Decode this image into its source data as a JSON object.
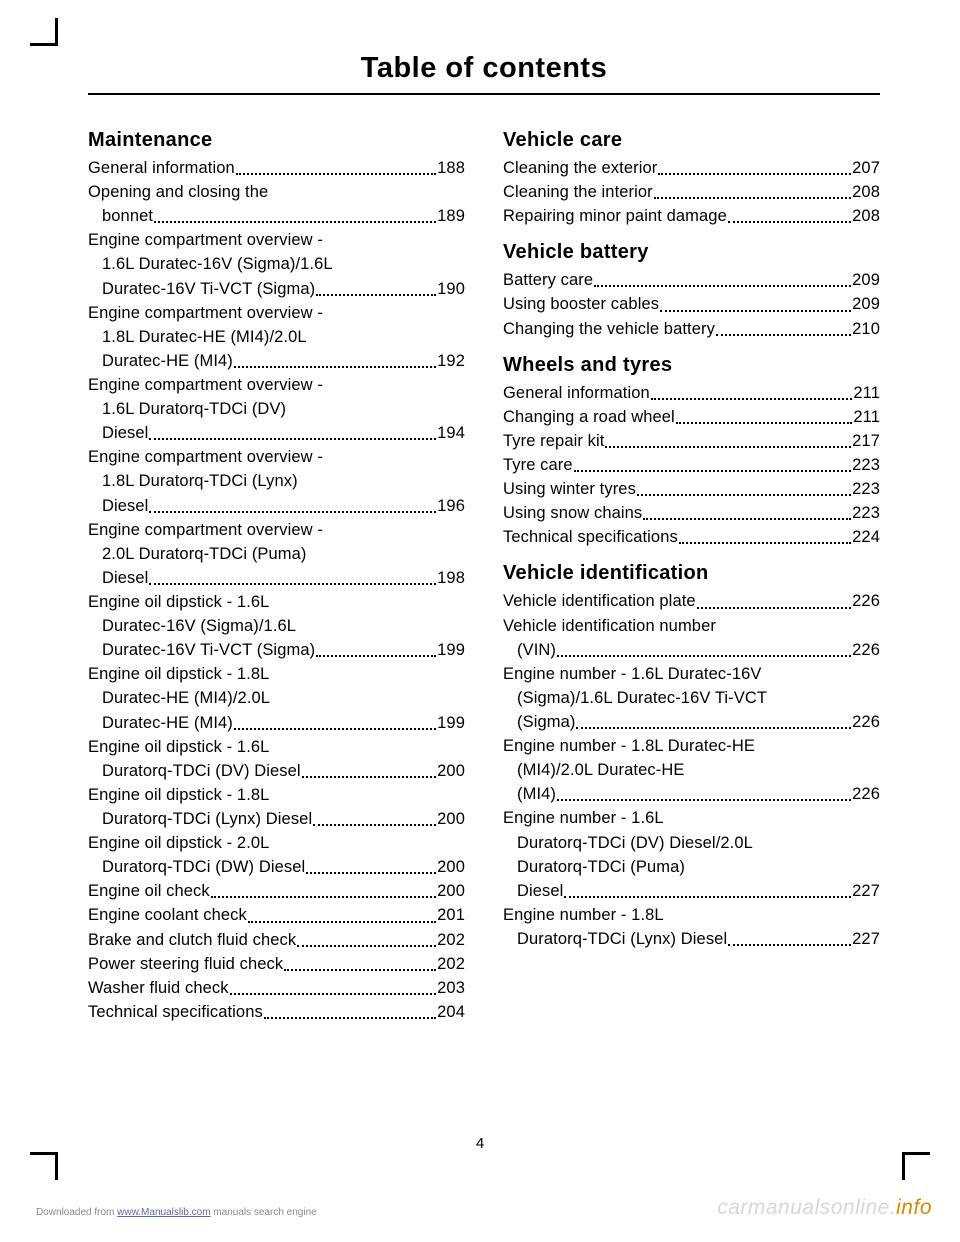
{
  "title": "Table of contents",
  "page_number": "4",
  "footer": {
    "prefix": "Downloaded from ",
    "link": "www.Manualslib.com",
    "suffix": " manuals search engine"
  },
  "watermark": {
    "left": "carmanualsonline.",
    "right": "info"
  },
  "left_column": {
    "sections": [
      {
        "heading": "Maintenance",
        "entries": [
          {
            "text": "General information",
            "page": "188"
          },
          {
            "text": "Opening and closing the",
            "cont": "bonnet",
            "page": "189"
          },
          {
            "text": "Engine compartment overview -",
            "cont": "1.6L Duratec-16V (Sigma)/1.6L",
            "cont2": "Duratec-16V Ti-VCT (Sigma)",
            "page": "190"
          },
          {
            "text": "Engine compartment overview -",
            "cont": "1.8L Duratec-HE (MI4)/2.0L",
            "cont2": "Duratec-HE (MI4)",
            "page": "192"
          },
          {
            "text": "Engine compartment overview -",
            "cont": "1.6L Duratorq-TDCi (DV)",
            "cont2": "Diesel",
            "page": "194"
          },
          {
            "text": "Engine compartment overview -",
            "cont": "1.8L Duratorq-TDCi (Lynx)",
            "cont2": "Diesel",
            "page": "196"
          },
          {
            "text": "Engine compartment overview -",
            "cont": "2.0L Duratorq-TDCi (Puma)",
            "cont2": "Diesel",
            "page": "198"
          },
          {
            "text": "Engine oil dipstick - 1.6L",
            "cont": "Duratec-16V (Sigma)/1.6L",
            "cont2": "Duratec-16V Ti-VCT (Sigma)",
            "page": "199"
          },
          {
            "text": "Engine oil dipstick - 1.8L",
            "cont": "Duratec-HE (MI4)/2.0L",
            "cont2": "Duratec-HE (MI4)",
            "page": "199"
          },
          {
            "text": "Engine oil dipstick - 1.6L",
            "cont": "Duratorq-TDCi (DV) Diesel",
            "page": "200"
          },
          {
            "text": "Engine oil dipstick - 1.8L",
            "cont": "Duratorq-TDCi (Lynx) Diesel",
            "page": "200"
          },
          {
            "text": "Engine oil dipstick - 2.0L",
            "cont": "Duratorq-TDCi (DW) Diesel",
            "page": "200"
          },
          {
            "text": "Engine oil check",
            "page": "200"
          },
          {
            "text": "Engine coolant check",
            "page": "201"
          },
          {
            "text": "Brake and clutch fluid check",
            "page": "202"
          },
          {
            "text": "Power steering fluid check",
            "page": "202"
          },
          {
            "text": "Washer fluid check",
            "page": "203"
          },
          {
            "text": "Technical specifications",
            "page": "204"
          }
        ]
      }
    ]
  },
  "right_column": {
    "sections": [
      {
        "heading": "Vehicle care",
        "entries": [
          {
            "text": "Cleaning the exterior",
            "page": "207"
          },
          {
            "text": "Cleaning the interior",
            "page": "208"
          },
          {
            "text": "Repairing minor paint damage",
            "page": "208"
          }
        ]
      },
      {
        "heading": "Vehicle battery",
        "entries": [
          {
            "text": "Battery care",
            "page": "209"
          },
          {
            "text": "Using booster cables",
            "page": "209"
          },
          {
            "text": "Changing the vehicle battery",
            "page": "210"
          }
        ]
      },
      {
        "heading": "Wheels and tyres",
        "entries": [
          {
            "text": "General information",
            "page": "211"
          },
          {
            "text": "Changing a road wheel",
            "page": "211"
          },
          {
            "text": "Tyre repair kit",
            "page": "217"
          },
          {
            "text": "Tyre care",
            "page": "223"
          },
          {
            "text": "Using winter tyres",
            "page": "223"
          },
          {
            "text": "Using snow chains",
            "page": "223"
          },
          {
            "text": "Technical specifications",
            "page": "224"
          }
        ]
      },
      {
        "heading": "Vehicle identification",
        "entries": [
          {
            "text": "Vehicle identification plate",
            "page": "226"
          },
          {
            "text": "Vehicle identification number",
            "cont": "(VIN)",
            "page": "226"
          },
          {
            "text": "Engine number - 1.6L Duratec-16V",
            "cont": "(Sigma)/1.6L Duratec-16V Ti-VCT",
            "cont2": "(Sigma)",
            "page": "226"
          },
          {
            "text": "Engine number - 1.8L Duratec-HE",
            "cont": "(MI4)/2.0L Duratec-HE",
            "cont2": "(MI4)",
            "page": "226"
          },
          {
            "text": "Engine number - 1.6L",
            "cont": "Duratorq-TDCi (DV) Diesel/2.0L",
            "cont2": "Duratorq-TDCi (Puma)",
            "cont3": "Diesel",
            "page": "227"
          },
          {
            "text": "Engine number - 1.8L",
            "cont": "Duratorq-TDCi (Lynx) Diesel",
            "page": "227"
          }
        ]
      }
    ]
  }
}
